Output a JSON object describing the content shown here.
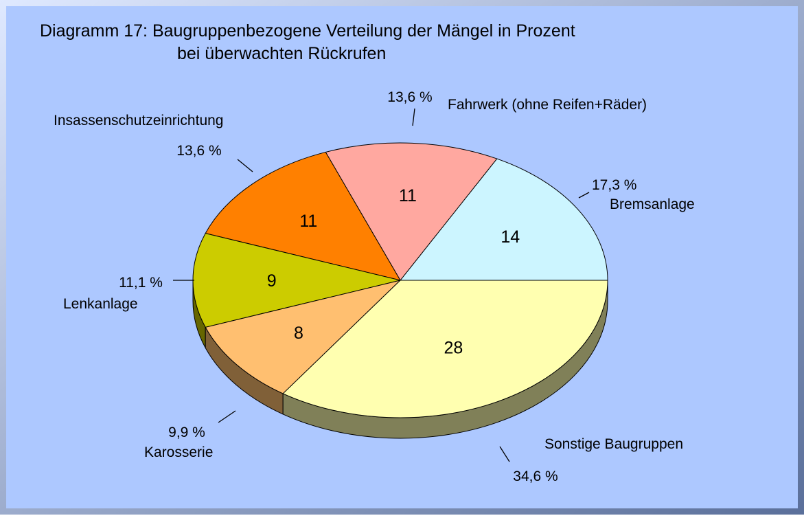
{
  "chart_data": {
    "type": "pie3d",
    "title": "Diagramm 17:  Baugruppenbezogene Verteilung der Mängel in Prozent",
    "subtitle": "bei überwachten Rückrufen",
    "categories": [
      "Bremsanlage",
      "Fahrwerk (ohne Reifen+Räder)",
      "Insassenschutzeinrichtung",
      "Lenkanlage",
      "Karosserie",
      "Sonstige Baugruppen"
    ],
    "values": [
      14,
      11,
      11,
      9,
      8,
      28
    ],
    "percentages": [
      17.3,
      13.6,
      13.6,
      11.1,
      9.9,
      34.6
    ],
    "percentage_labels": [
      "17,3 %",
      "13,6 %",
      "13,6 %",
      "11,1 %",
      "9,9 %",
      "34,6 %"
    ],
    "colors": [
      "#ccf5ff",
      "#ffa8a0",
      "#ff8000",
      "#cccc00",
      "#ffbf70",
      "#ffffb0"
    ]
  }
}
